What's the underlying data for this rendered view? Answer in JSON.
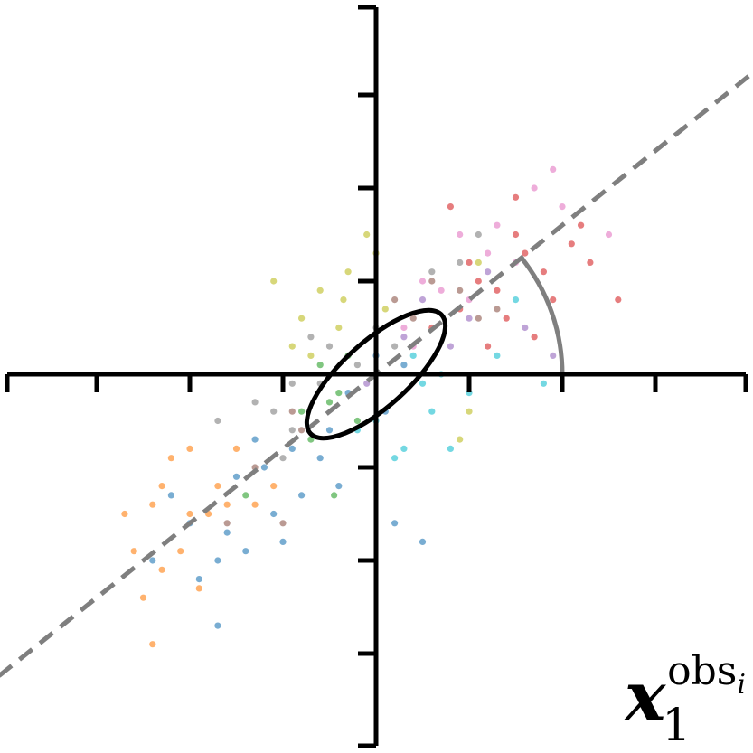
{
  "chart_data": {
    "type": "scatter",
    "title": "",
    "xlabel": "",
    "ylabel": "",
    "xlim": [
      -4,
      4
    ],
    "ylim": [
      -4,
      4
    ],
    "grid": false,
    "annotation": {
      "symbol": "x",
      "subscript": "1",
      "superscript": "obs",
      "superscript_subscript": "i"
    },
    "reference_line": {
      "style": "dashed",
      "color": "#7f7f7f",
      "slope": 0.8
    },
    "ellipse": {
      "center": [
        0,
        0
      ],
      "semi_major": 0.95,
      "semi_minor": 0.35,
      "angle_deg": 42
    },
    "angle_arc": {
      "radius": 2.0,
      "from_deg": 0,
      "to_deg": 39,
      "color": "#7f7f7f"
    },
    "palette": [
      "#1f77b4",
      "#ff7f0e",
      "#2ca02c",
      "#d62728",
      "#9467bd",
      "#8c564b",
      "#e377c2",
      "#7f7f7f",
      "#bcbd22",
      "#17becf"
    ],
    "series": [
      {
        "color": "#1f77b4",
        "points": [
          [
            -1.2,
            -1.0
          ],
          [
            -0.9,
            -0.8
          ],
          [
            -1.6,
            -1.7
          ],
          [
            -2.0,
            -1.6
          ],
          [
            -1.4,
            -1.9
          ],
          [
            -0.5,
            -0.6
          ],
          [
            -0.8,
            -1.3
          ],
          [
            -1.1,
            -1.5
          ],
          [
            -1.7,
            -2.0
          ],
          [
            -0.3,
            -0.2
          ],
          [
            0.1,
            -0.4
          ],
          [
            -0.6,
            -0.9
          ],
          [
            -1.9,
            -2.2
          ],
          [
            -2.4,
            -2.0
          ],
          [
            -1.0,
            -1.8
          ],
          [
            0.2,
            -1.6
          ],
          [
            0.5,
            -1.8
          ],
          [
            -1.7,
            -2.7
          ],
          [
            0.0,
            0.2
          ],
          [
            -0.4,
            -1.2
          ],
          [
            -1.3,
            -0.7
          ],
          [
            0.3,
            0.1
          ],
          [
            -2.2,
            -1.3
          ],
          [
            -1.5,
            -1.1
          ]
        ]
      },
      {
        "color": "#ff7f0e",
        "points": [
          [
            -2.0,
            -0.8
          ],
          [
            -2.4,
            -1.4
          ],
          [
            -2.1,
            -1.9
          ],
          [
            -1.7,
            -1.2
          ],
          [
            -2.6,
            -1.9
          ],
          [
            -1.9,
            -2.3
          ],
          [
            -1.3,
            -1.4
          ],
          [
            -2.3,
            -2.1
          ],
          [
            -1.6,
            -1.4
          ],
          [
            -2.5,
            -2.4
          ],
          [
            -2.4,
            -2.9
          ],
          [
            -1.1,
            -1.2
          ],
          [
            -2.0,
            -1.5
          ],
          [
            -2.2,
            -0.9
          ],
          [
            -1.8,
            -1.5
          ],
          [
            -2.3,
            -1.2
          ],
          [
            -1.5,
            -0.8
          ],
          [
            -2.7,
            -1.5
          ]
        ]
      },
      {
        "color": "#2ca02c",
        "points": [
          [
            -0.4,
            -0.2
          ],
          [
            -0.6,
            0.1
          ],
          [
            -0.5,
            -0.3
          ],
          [
            -1.4,
            -1.3
          ],
          [
            -0.3,
            0.2
          ],
          [
            -0.2,
            -0.5
          ],
          [
            -0.8,
            -0.4
          ],
          [
            -0.7,
            -0.7
          ],
          [
            -0.45,
            -1.3
          ]
        ]
      },
      {
        "color": "#d62728",
        "points": [
          [
            1.8,
            1.1
          ],
          [
            2.1,
            1.4
          ],
          [
            1.3,
            0.9
          ],
          [
            1.6,
            1.3
          ],
          [
            2.3,
            1.2
          ],
          [
            1.4,
            0.6
          ],
          [
            0.9,
            0.7
          ],
          [
            2.6,
            0.8
          ],
          [
            0.8,
            1.8
          ],
          [
            1.5,
            1.5
          ],
          [
            1.1,
            1.0
          ],
          [
            1.9,
            0.8
          ],
          [
            1.0,
            1.2
          ],
          [
            0.6,
            0.5
          ],
          [
            1.7,
            0.4
          ],
          [
            2.2,
            1.6
          ],
          [
            1.5,
            1.9
          ],
          [
            1.2,
            0.3
          ]
        ]
      },
      {
        "color": "#9467bd",
        "points": [
          [
            0.8,
            0.3
          ],
          [
            1.0,
            0.6
          ],
          [
            0.5,
            0.8
          ],
          [
            1.2,
            1.1
          ],
          [
            0.3,
            0.4
          ],
          [
            1.6,
            0.5
          ],
          [
            -0.1,
            -0.1
          ],
          [
            1.9,
            0.2
          ]
        ]
      },
      {
        "color": "#8c564b",
        "points": [
          [
            -0.8,
            -0.6
          ],
          [
            0.6,
            1.0
          ],
          [
            1.1,
            0.6
          ],
          [
            -1.0,
            -1.6
          ],
          [
            -1.3,
            -1.0
          ],
          [
            0.9,
            0.9
          ],
          [
            0.4,
            0.6
          ],
          [
            -0.9,
            -0.4
          ],
          [
            1.3,
            0.7
          ],
          [
            0.2,
            0.8
          ],
          [
            -1.6,
            -1.6
          ]
        ]
      },
      {
        "color": "#e377c2",
        "points": [
          [
            0.3,
            0.5
          ],
          [
            1.2,
            1.3
          ],
          [
            0.5,
            1.0
          ],
          [
            1.7,
            2.0
          ],
          [
            2.0,
            1.8
          ],
          [
            1.5,
            1.2
          ],
          [
            1.0,
            0.8
          ],
          [
            0.4,
            0.3
          ],
          [
            1.9,
            2.2
          ],
          [
            0.9,
            1.5
          ],
          [
            2.5,
            1.5
          ],
          [
            1.3,
            1.6
          ],
          [
            0.7,
            0.9
          ]
        ]
      },
      {
        "color": "#7f7f7f",
        "points": [
          [
            -0.9,
            -0.1
          ],
          [
            -1.1,
            -0.4
          ],
          [
            -1.3,
            -0.3
          ],
          [
            -0.6,
            -0.1
          ],
          [
            -1.7,
            -0.5
          ],
          [
            -0.5,
            0.3
          ],
          [
            -1.0,
            -0.9
          ],
          [
            -0.9,
            -0.6
          ],
          [
            0.6,
            1.1
          ],
          [
            0.0,
            0.5
          ],
          [
            0.9,
            1.2
          ],
          [
            -0.7,
            0.4
          ],
          [
            1.1,
            1.5
          ],
          [
            -0.2,
            0.1
          ],
          [
            0.2,
            0.3
          ]
        ]
      },
      {
        "color": "#bcbd22",
        "points": [
          [
            -1.1,
            1.0
          ],
          [
            -0.8,
            0.6
          ],
          [
            -0.6,
            0.9
          ],
          [
            -0.4,
            0.5
          ],
          [
            -0.7,
            0.2
          ],
          [
            0.1,
            0.7
          ],
          [
            0.9,
            -0.7
          ],
          [
            -0.3,
            1.1
          ],
          [
            1.1,
            1.2
          ],
          [
            -0.1,
            1.5
          ],
          [
            -0.35,
            0.8
          ],
          [
            0.0,
            1.3
          ],
          [
            1.0,
            -0.4
          ],
          [
            -0.9,
            0.3
          ]
        ]
      },
      {
        "color": "#17becf",
        "points": [
          [
            0.3,
            -0.8
          ],
          [
            0.6,
            -0.4
          ],
          [
            1.0,
            -0.2
          ],
          [
            0.8,
            -0.8
          ],
          [
            0.5,
            -0.1
          ],
          [
            0.2,
            -0.9
          ],
          [
            1.5,
            0.8
          ],
          [
            0.0,
            -0.5
          ],
          [
            1.8,
            -0.1
          ],
          [
            0.4,
            0.2
          ],
          [
            -0.2,
            -0.6
          ],
          [
            0.7,
            0.0
          ],
          [
            1.3,
            0.2
          ]
        ]
      }
    ]
  }
}
